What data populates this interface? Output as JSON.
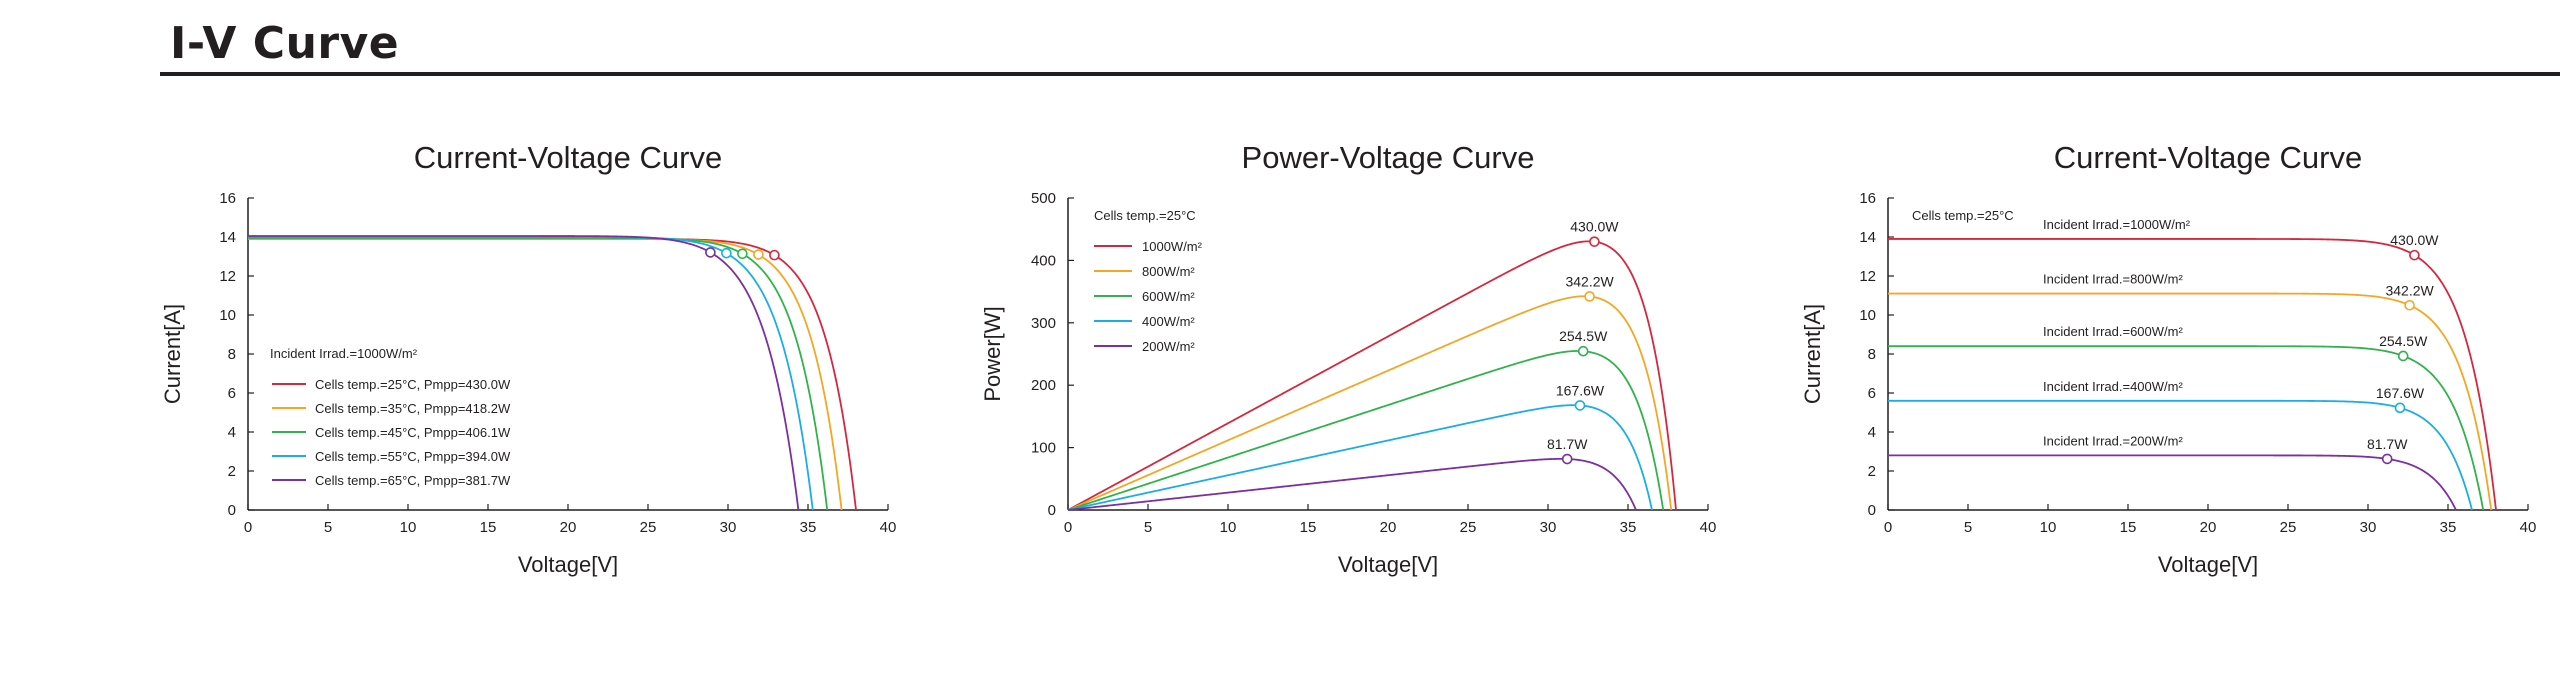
{
  "page": {
    "heading": "I-V Curve"
  },
  "chart_data": [
    {
      "type": "line",
      "title": "Current-Voltage Curve",
      "xlabel": "Voltage[V]",
      "ylabel": "Current[A]",
      "xlim": [
        0,
        40
      ],
      "ylim": [
        0,
        16
      ],
      "xticks": [
        "0",
        "5",
        "10",
        "15",
        "20",
        "25",
        "30",
        "35",
        "40"
      ],
      "yticks": [
        "0",
        "2",
        "4",
        "6",
        "8",
        "10",
        "12",
        "14",
        "16"
      ],
      "legend_title": "Incident Irrad.=1000W/m²",
      "legend_position": "bottom-left",
      "series": [
        {
          "name": "Cells temp.=25°C, Pmpp=430.0W",
          "color": "#d7263d",
          "isc": 13.9,
          "voc": 38.0,
          "vmp": 32.9,
          "imp": 13.07
        },
        {
          "name": "Cells temp.=35°C, Pmpp=418.2W",
          "color": "#f5a623",
          "isc": 13.9,
          "voc": 37.1,
          "vmp": 31.9,
          "imp": 13.1
        },
        {
          "name": "Cells temp.=45°C, Pmpp=406.1W",
          "color": "#2fb34a",
          "isc": 13.95,
          "voc": 36.2,
          "vmp": 30.9,
          "imp": 13.14
        },
        {
          "name": "Cells temp.=55°C, Pmpp=394.0W",
          "color": "#1aaee5",
          "isc": 14.0,
          "voc": 35.3,
          "vmp": 29.9,
          "imp": 13.17
        },
        {
          "name": "Cells temp.=65°C, Pmpp=381.7W",
          "color": "#7b2fa0",
          "isc": 14.05,
          "voc": 34.4,
          "vmp": 28.9,
          "imp": 13.21
        }
      ]
    },
    {
      "type": "line",
      "title": "Power-Voltage Curve",
      "xlabel": "Voltage[V]",
      "ylabel": "Power[W]",
      "xlim": [
        0,
        40
      ],
      "ylim": [
        0,
        500
      ],
      "xticks": [
        "0",
        "5",
        "10",
        "15",
        "20",
        "25",
        "30",
        "35",
        "40"
      ],
      "yticks": [
        "0",
        "100",
        "200",
        "300",
        "400",
        "500"
      ],
      "legend_title": "Cells temp.=25°C",
      "legend_position": "top-left",
      "series": [
        {
          "name": "1000W/m²",
          "color": "#d7263d",
          "vmp": 32.9,
          "pmax": 430.0,
          "voc": 38.0,
          "marker_label": "430.0W"
        },
        {
          "name": "800W/m²",
          "color": "#f5a623",
          "vmp": 32.6,
          "pmax": 342.2,
          "voc": 37.7,
          "marker_label": "342.2W"
        },
        {
          "name": "600W/m²",
          "color": "#2fb34a",
          "vmp": 32.2,
          "pmax": 254.5,
          "voc": 37.2,
          "marker_label": "254.5W"
        },
        {
          "name": "400W/m²",
          "color": "#1aaee5",
          "vmp": 32.0,
          "pmax": 167.6,
          "voc": 36.5,
          "marker_label": "167.6W"
        },
        {
          "name": "200W/m²",
          "color": "#7b2fa0",
          "vmp": 31.2,
          "pmax": 81.7,
          "voc": 35.5,
          "marker_label": "81.7W"
        }
      ]
    },
    {
      "type": "line",
      "title": "Current-Voltage Curve",
      "xlabel": "Voltage[V]",
      "ylabel": "Current[A]",
      "xlim": [
        0,
        40
      ],
      "ylim": [
        0,
        16
      ],
      "xticks": [
        "0",
        "5",
        "10",
        "15",
        "20",
        "25",
        "30",
        "35",
        "40"
      ],
      "yticks": [
        "0",
        "2",
        "4",
        "6",
        "8",
        "10",
        "12",
        "14",
        "16"
      ],
      "legend_title": "Cells temp.=25°C",
      "legend_position": "top-left",
      "series": [
        {
          "name": "Incident Irrad.=1000W/m²",
          "color": "#d7263d",
          "isc": 13.9,
          "voc": 38.0,
          "vmp": 32.9,
          "imp": 13.07,
          "marker_label": "430.0W"
        },
        {
          "name": "Incident Irrad.=800W/m²",
          "color": "#f5a623",
          "isc": 11.1,
          "voc": 37.7,
          "vmp": 32.6,
          "imp": 10.5,
          "marker_label": "342.2W"
        },
        {
          "name": "Incident Irrad.=600W/m²",
          "color": "#2fb34a",
          "isc": 8.4,
          "voc": 37.2,
          "vmp": 32.2,
          "imp": 7.9,
          "marker_label": "254.5W"
        },
        {
          "name": "Incident Irrad.=400W/m²",
          "color": "#1aaee5",
          "isc": 5.6,
          "voc": 36.5,
          "vmp": 32.0,
          "imp": 5.24,
          "marker_label": "167.6W"
        },
        {
          "name": "Incident Irrad.=200W/m²",
          "color": "#7b2fa0",
          "isc": 2.8,
          "voc": 35.5,
          "vmp": 31.2,
          "imp": 2.62,
          "marker_label": "81.7W"
        }
      ]
    }
  ]
}
